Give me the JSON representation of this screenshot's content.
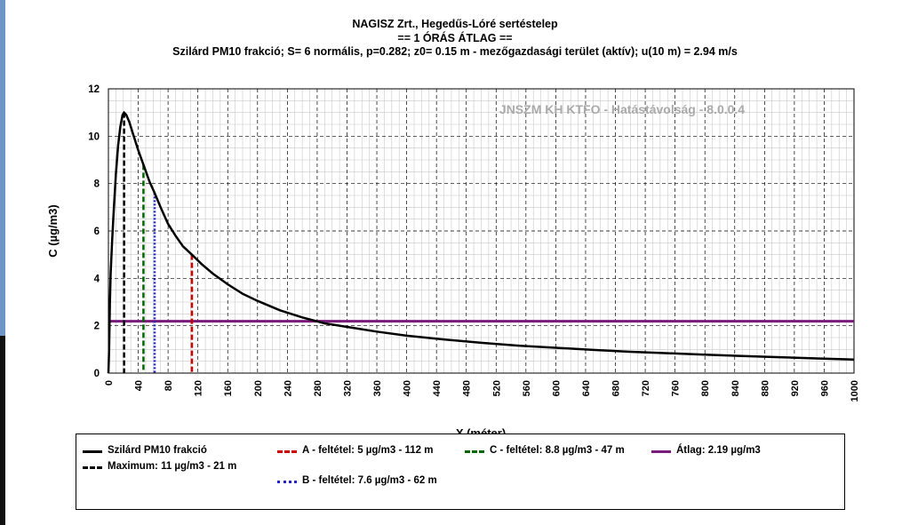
{
  "titles": {
    "line1": "NAGISZ Zrt., Hegedűs-Lóré sertéstelep",
    "line2": "== 1 ÓRÁS ÁTLAG ==",
    "line3": "Szilárd PM10 frakció; S= 6 normális, p=0.282; z0= 0.15 m - mezőgazdasági terület (aktív); u(10 m) = 2.94 m/s"
  },
  "watermark": "JNSZM KH KTFO - Hatástávolság  - 8.0.0.4",
  "chart_data": {
    "type": "line",
    "xlabel": "X (méter)",
    "ylabel": "C (µg/m3)",
    "xlim": [
      0,
      1000
    ],
    "ylim": [
      0,
      12
    ],
    "xticks": [
      0,
      40,
      80,
      120,
      160,
      200,
      240,
      280,
      320,
      360,
      400,
      440,
      480,
      520,
      560,
      600,
      640,
      680,
      720,
      760,
      800,
      840,
      880,
      920,
      960,
      1000
    ],
    "yticks": [
      0,
      2,
      4,
      6,
      8,
      10,
      12
    ],
    "grid": true,
    "series": [
      {
        "name": "Szilárd PM10 frakció",
        "color": "#000000",
        "x": [
          0,
          1,
          2,
          3,
          5,
          7,
          10,
          13,
          16,
          19,
          21,
          24,
          28,
          33,
          40,
          47,
          55,
          62,
          70,
          80,
          90,
          100,
          112,
          125,
          140,
          160,
          180,
          200,
          230,
          260,
          290,
          320,
          360,
          400,
          450,
          500,
          550,
          600,
          650,
          700,
          750,
          800,
          850,
          900,
          950,
          1000
        ],
        "y": [
          0,
          1.0,
          3.0,
          4.2,
          5.6,
          6.8,
          8.4,
          9.6,
          10.4,
          10.9,
          11.0,
          10.9,
          10.6,
          10.1,
          9.4,
          8.8,
          8.1,
          7.6,
          7.0,
          6.3,
          5.8,
          5.35,
          5.0,
          4.6,
          4.2,
          3.75,
          3.35,
          3.05,
          2.65,
          2.35,
          2.1,
          1.95,
          1.75,
          1.58,
          1.42,
          1.28,
          1.16,
          1.07,
          0.98,
          0.9,
          0.84,
          0.78,
          0.72,
          0.67,
          0.62,
          0.57
        ]
      }
    ],
    "markers": [
      {
        "name": "Maximum: 11 µg/m3 - 21 m",
        "x": 21,
        "y": 11,
        "color": "#000000",
        "style": "dashed"
      },
      {
        "name": "A - feltétel: 5 µg/m3 - 112 m",
        "x": 112,
        "y": 5,
        "color": "#cc0000",
        "style": "dashed"
      },
      {
        "name": "C - feltétel: 8.8 µg/m3 - 47 m",
        "x": 47,
        "y": 8.8,
        "color": "#006600",
        "style": "dashed"
      },
      {
        "name": "B - feltétel: 7.6 µg/m3 - 62 m",
        "x": 62,
        "y": 7.6,
        "color": "#2222cc",
        "style": "dotted"
      }
    ],
    "hlines": [
      {
        "name": "Átlag: 2.19 µg/m3",
        "y": 2.19,
        "color": "#7a1a7a"
      }
    ],
    "legend_placement": "bottom"
  }
}
